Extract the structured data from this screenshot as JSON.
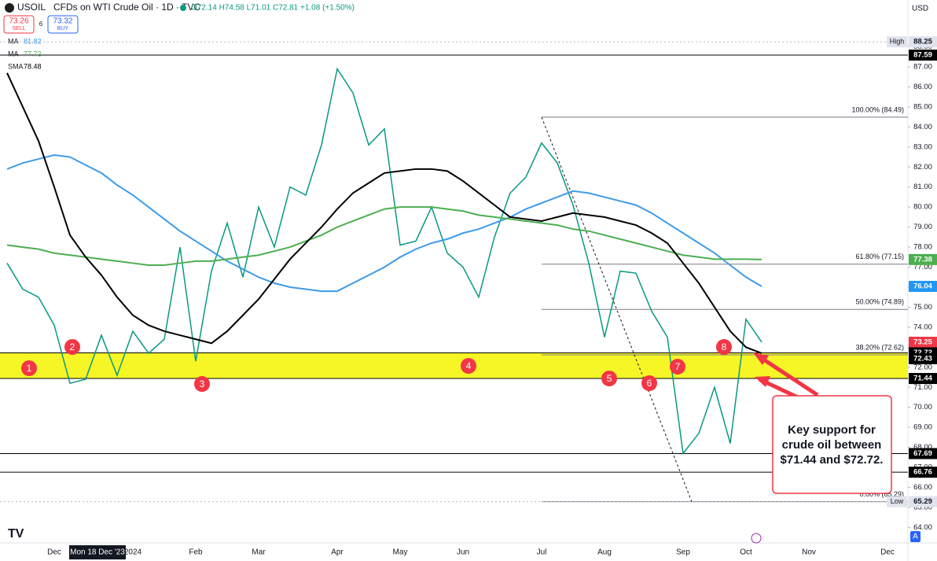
{
  "chart_data": {
    "type": "line",
    "title": "CFDs on WTI Crude Oil · 1D · TVC",
    "ohlc": "O72.14 H74.58 L71.01 C72.81 +1.08 (+1.50%)",
    "sell_price": 73.26,
    "sell_label": "SELL",
    "spread": 6,
    "buy_price": 73.32,
    "buy_label": "BUY",
    "currency": "USD",
    "crosshair": "Mon 18 Dec '23",
    "categories": [
      null,
      null,
      null,
      "Dec",
      null,
      null,
      null,
      null,
      "2024",
      null,
      null,
      null,
      "Feb",
      null,
      null,
      null,
      "Mar",
      null,
      null,
      null,
      null,
      "Apr",
      null,
      null,
      null,
      "May",
      null,
      null,
      null,
      "Jun",
      null,
      null,
      null,
      null,
      "Jul",
      null,
      null,
      null,
      "Aug",
      null,
      null,
      null,
      null,
      "Sep",
      null,
      null,
      null,
      "Oct",
      null,
      null,
      null,
      "Nov",
      null,
      null,
      null,
      null,
      "Dec",
      null
    ],
    "series": [
      {
        "name": "USOIL",
        "color": "#089981",
        "values": [
          77.2,
          75.9,
          75.5,
          74.1,
          71.2,
          71.4,
          73.6,
          71.6,
          73.8,
          72.7,
          73.4,
          78.0,
          72.3,
          76.8,
          79.2,
          76.5,
          80.0,
          78.0,
          81.0,
          80.6,
          83.1,
          86.9,
          85.7,
          83.1,
          83.9,
          78.1,
          78.3,
          80.0,
          77.7,
          77.0,
          75.5,
          78.5,
          80.7,
          81.5,
          83.2,
          82.2,
          80.1,
          77.2,
          73.5,
          76.8,
          76.7,
          74.8,
          73.5,
          67.7,
          68.7,
          71.0,
          68.2,
          74.4,
          73.25,
          null,
          null,
          null,
          null,
          null,
          null,
          null,
          null,
          null
        ]
      },
      {
        "name": "MA",
        "legend_value": 81.82,
        "color": "#3d9be9",
        "values": [
          81.9,
          82.2,
          82.4,
          82.6,
          82.5,
          82.1,
          81.7,
          81.1,
          80.6,
          80.0,
          79.4,
          78.8,
          78.3,
          77.8,
          77.3,
          76.9,
          76.5,
          76.2,
          76.0,
          75.9,
          75.8,
          75.8,
          76.2,
          76.6,
          77.0,
          77.5,
          77.9,
          78.2,
          78.4,
          78.7,
          78.9,
          79.2,
          79.5,
          79.9,
          80.2,
          80.5,
          80.8,
          80.7,
          80.5,
          80.3,
          80.1,
          79.7,
          79.2,
          78.7,
          78.2,
          77.7,
          77.1,
          76.5,
          76.04,
          null,
          null,
          null,
          null,
          null,
          null,
          null,
          null,
          null
        ]
      },
      {
        "name": "MA",
        "legend_value": 77.72,
        "color": "#4caf50",
        "values": [
          78.1,
          78.0,
          77.9,
          77.7,
          77.6,
          77.5,
          77.4,
          77.3,
          77.2,
          77.1,
          77.1,
          77.2,
          77.3,
          77.3,
          77.4,
          77.5,
          77.6,
          77.8,
          78.0,
          78.3,
          78.6,
          79.0,
          79.3,
          79.6,
          79.9,
          80.0,
          80.0,
          80.0,
          79.9,
          79.8,
          79.6,
          79.5,
          79.4,
          79.3,
          79.2,
          79.1,
          78.9,
          78.8,
          78.6,
          78.4,
          78.2,
          78.0,
          77.8,
          77.6,
          77.5,
          77.4,
          77.4,
          77.4,
          77.38,
          null,
          null,
          null,
          null,
          null,
          null,
          null,
          null,
          null
        ]
      },
      {
        "name": "SMA",
        "legend_value": 78.48,
        "color": "#000000",
        "values": [
          86.7,
          85.0,
          83.3,
          81.0,
          78.6,
          77.5,
          76.6,
          75.5,
          74.6,
          74.1,
          73.8,
          73.6,
          73.4,
          73.2,
          73.8,
          74.6,
          75.4,
          76.4,
          77.4,
          78.2,
          79.0,
          79.9,
          80.7,
          81.2,
          81.7,
          81.8,
          81.9,
          81.9,
          81.8,
          81.3,
          80.7,
          80.1,
          79.5,
          79.4,
          79.3,
          79.5,
          79.7,
          79.6,
          79.5,
          79.3,
          79.1,
          78.7,
          78.2,
          77.2,
          76.2,
          75.0,
          73.8,
          73.0,
          72.7,
          null,
          null,
          null,
          null,
          null,
          null,
          null,
          null,
          null
        ]
      }
    ],
    "ylim": [
      63.23,
      90.34
    ],
    "yticks": [
      {
        "value": 64,
        "label": "64.00"
      },
      {
        "value": 65,
        "label": "65.00"
      },
      {
        "value": 66,
        "label": "66.00"
      },
      {
        "value": 67,
        "label": "67.00"
      },
      {
        "value": 68,
        "label": "68.00"
      },
      {
        "value": 69,
        "label": "69.00"
      },
      {
        "value": 70,
        "label": "70.00"
      },
      {
        "value": 71,
        "label": "71.00"
      },
      {
        "value": 72,
        "label": "72.00"
      },
      {
        "value": 73,
        "label": "73.00"
      },
      {
        "value": 74,
        "label": "74.00"
      },
      {
        "value": 75,
        "label": "75.00"
      },
      {
        "value": 76,
        "label": "76.00"
      },
      {
        "value": 77,
        "label": "77.00"
      },
      {
        "value": 78,
        "label": "78.00"
      },
      {
        "value": 79,
        "label": "79.00"
      },
      {
        "value": 80,
        "label": "80.00"
      },
      {
        "value": 81,
        "label": "81.00"
      },
      {
        "value": 82,
        "label": "82.00"
      },
      {
        "value": 83,
        "label": "83.00"
      },
      {
        "value": 84,
        "label": "84.00"
      },
      {
        "value": 85,
        "label": "85.00"
      },
      {
        "value": 86,
        "label": "86.00"
      },
      {
        "value": 87,
        "label": "87.00"
      },
      {
        "value": 88,
        "label": "88.00"
      }
    ],
    "band": {
      "low": 71.44,
      "high": 72.72,
      "color": "#f5f500"
    },
    "levels": [
      87.59,
      72.72,
      71.44,
      67.69,
      66.76
    ],
    "fib": {
      "start": 34,
      "levels": [
        {
          "value": 84.49,
          "label": "100.00% (84.49)"
        },
        {
          "value": 77.15,
          "label": "61.80% (77.15)"
        },
        {
          "value": 74.89,
          "label": "50.00% (74.89)"
        },
        {
          "value": 72.62,
          "label": "38.20% (72.62)"
        },
        {
          "value": 65.29,
          "label": "0.00% (65.29)"
        }
      ]
    },
    "price_tags": [
      {
        "value": 88.25,
        "color": "#e0e3eb",
        "note": "High"
      },
      {
        "value": 87.59,
        "color": "#000000"
      },
      {
        "value": 77.38,
        "color": "#4caf50"
      },
      {
        "value": 76.04,
        "color": "#2196f3"
      },
      {
        "value": 73.25,
        "color": "#f23645"
      },
      {
        "value": 72.72,
        "color": "#000000"
      },
      {
        "value": 72.43,
        "color": "#000000"
      },
      {
        "value": 71.44,
        "color": "#000000"
      },
      {
        "value": 67.69,
        "color": "#000000"
      },
      {
        "value": 66.76,
        "color": "#000000"
      },
      {
        "value": 65.29,
        "color": "#e0e3eb",
        "note": "Low"
      }
    ],
    "annotations": [
      "1",
      "2",
      "3",
      "4",
      "5",
      "6",
      "7",
      "8"
    ],
    "note": [
      "Key support for",
      "crude oil between",
      "$71.44 and $72.72."
    ]
  }
}
